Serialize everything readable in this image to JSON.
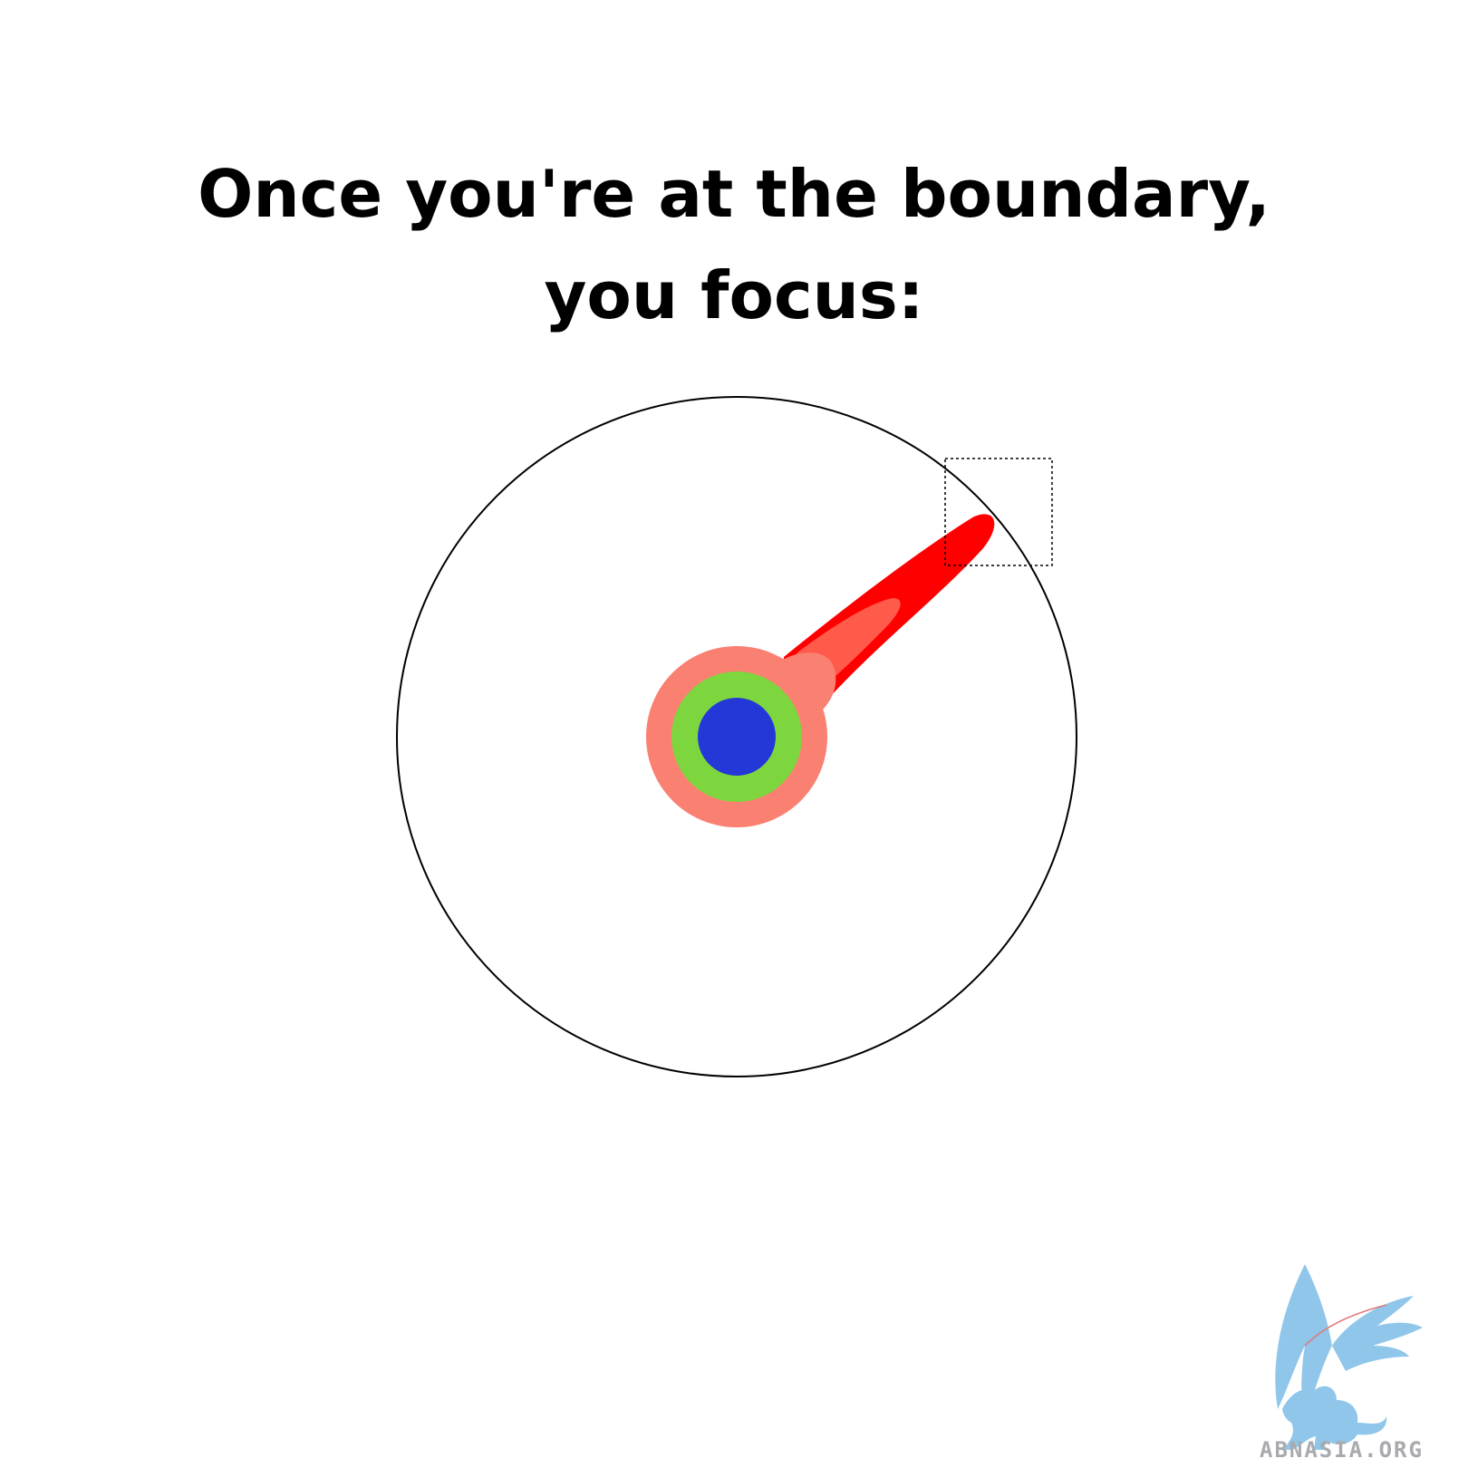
{
  "title": "Once you're at the boundary, you focus:",
  "colors": {
    "boundary_circle": "#000000",
    "focus_box": "#000000",
    "outer_ring": "#fa8072",
    "middle_ring": "#7ed63e",
    "core": "#2438d8",
    "spike": "#ff0000",
    "spike_highlight": "#ff5a4a",
    "watermark": "#8fc6ea"
  },
  "watermark": {
    "text": "ABNASIA.ORG",
    "logo": "griffin-logo"
  }
}
